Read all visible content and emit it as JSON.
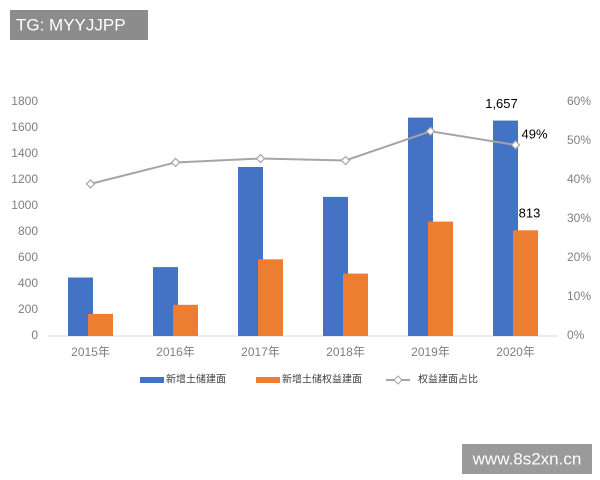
{
  "watermarks": [
    "TG: MYYJJPP",
    "www.8s2xn.cn"
  ],
  "chart_data": {
    "type": "bar",
    "categories": [
      "2015年",
      "2016年",
      "2017年",
      "2018年",
      "2019年",
      "2020年"
    ],
    "series": [
      {
        "name": "新增土储建面",
        "color": "#4472c4",
        "type": "bar",
        "values": [
          450,
          530,
          1300,
          1070,
          1680,
          1657
        ],
        "value_labels": [
          null,
          null,
          null,
          null,
          null,
          "1,657"
        ]
      },
      {
        "name": "新增土储权益建面",
        "color": "#ed7d31",
        "type": "bar",
        "values": [
          170,
          240,
          590,
          480,
          880,
          813
        ],
        "value_labels": [
          null,
          null,
          null,
          null,
          null,
          "813"
        ]
      },
      {
        "name": "权益建面占比",
        "color": "#a5a5a5",
        "type": "line",
        "axis": "y2",
        "values": [
          39,
          44.5,
          45.5,
          45,
          52.5,
          49
        ],
        "value_labels": [
          null,
          null,
          null,
          null,
          null,
          "49%"
        ]
      }
    ],
    "ylim": [
      0,
      1800
    ],
    "yticks": [
      0,
      200,
      400,
      600,
      800,
      1000,
      1200,
      1400,
      1600,
      1800
    ],
    "y2lim": [
      0,
      60
    ],
    "y2ticks": [
      {
        "value": 0,
        "label": "0%"
      },
      {
        "value": 10,
        "label": "10%"
      },
      {
        "value": 20,
        "label": "20%"
      },
      {
        "value": 30,
        "label": "30%"
      },
      {
        "value": 40,
        "label": "40%"
      },
      {
        "value": 50,
        "label": "50%"
      },
      {
        "value": 60,
        "label": "60%"
      }
    ],
    "grid": false,
    "legend": "bottom"
  }
}
